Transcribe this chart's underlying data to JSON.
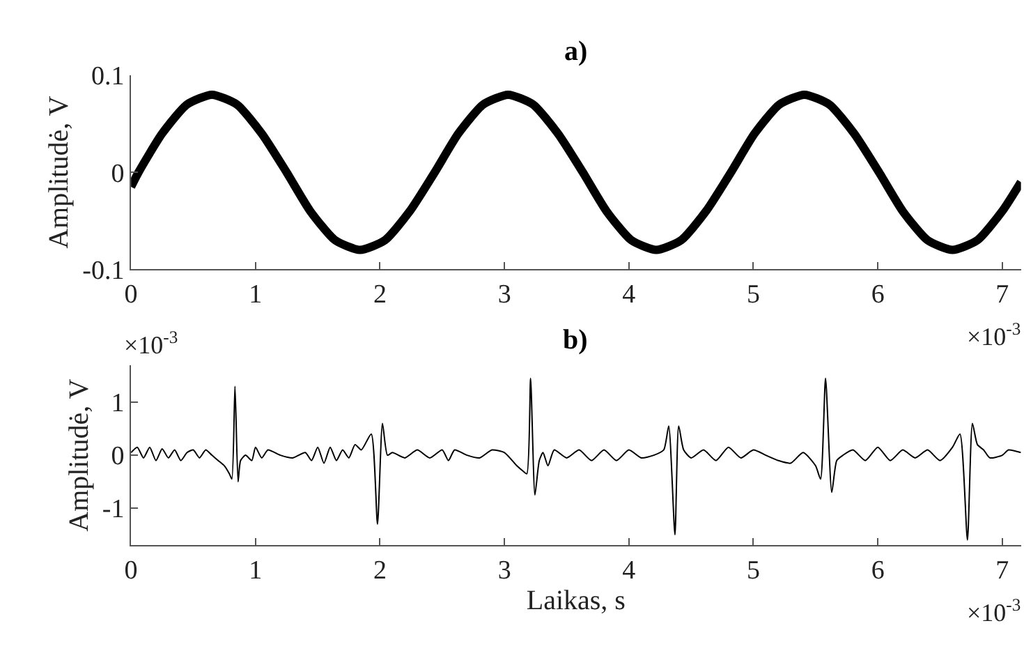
{
  "chart_data": [
    {
      "type": "line",
      "title": "a)",
      "ylabel": "Amplitudė, V",
      "annotations": [
        "×10$^{-3}$"
      ],
      "x": [
        0,
        0.06,
        0.25,
        0.45,
        0.65,
        0.85,
        1.05,
        1.25,
        1.44,
        1.64,
        1.84,
        2.04,
        2.24,
        2.44,
        2.63,
        2.83,
        3.03,
        3.23,
        3.43,
        3.63,
        3.82,
        4.02,
        4.22,
        4.42,
        4.62,
        4.82,
        5.01,
        5.21,
        5.41,
        5.61,
        5.81,
        6.01,
        6.2,
        6.4,
        6.6,
        6.8,
        7,
        7.15
      ],
      "series": [
        {
          "color": "#000000",
          "values": [
            -0.015,
            0,
            0.04,
            0.07,
            0.08,
            0.07,
            0.04,
            0,
            -0.04,
            -0.07,
            -0.08,
            -0.07,
            -0.04,
            0,
            0.04,
            0.07,
            0.08,
            0.07,
            0.04,
            0,
            -0.04,
            -0.07,
            -0.08,
            -0.07,
            -0.04,
            0,
            0.04,
            0.07,
            0.08,
            0.07,
            0.04,
            0,
            -0.04,
            -0.07,
            -0.08,
            -0.07,
            -0.04,
            -0.01
          ]
        }
      ],
      "xlim": [
        0,
        7.15
      ],
      "xticks": [
        0,
        1,
        2,
        3,
        4,
        5,
        6,
        7
      ],
      "ylim": [
        -0.1,
        0.1
      ],
      "yticks": [
        {
          "value": -0.1,
          "label": "-0.1"
        },
        0,
        0.1
      ],
      "marker": "none",
      "line_style": "solid"
    },
    {
      "type": "line",
      "title": "b)",
      "xlabel": "Laikas, s",
      "ylabel": "Amplitudė, V",
      "annotations": [
        "×10$^{-3}$",
        "×10$^{-3}$"
      ],
      "x": [
        0,
        0.05,
        0.1,
        0.15,
        0.2,
        0.25,
        0.3,
        0.35,
        0.4,
        0.45,
        0.5,
        0.55,
        0.6,
        0.65,
        0.7,
        0.75,
        0.79,
        0.81,
        0.835,
        0.86,
        0.88,
        0.92,
        0.97,
        1.0,
        1.05,
        1.1,
        1.2,
        1.3,
        1.4,
        1.45,
        1.5,
        1.55,
        1.6,
        1.65,
        1.7,
        1.75,
        1.8,
        1.85,
        1.93,
        1.98,
        2.02,
        2.06,
        2.1,
        2.2,
        2.3,
        2.4,
        2.5,
        2.55,
        2.6,
        2.7,
        2.8,
        2.9,
        3.0,
        3.1,
        3.15,
        3.18,
        3.21,
        3.245,
        3.28,
        3.31,
        3.35,
        3.4,
        3.5,
        3.6,
        3.7,
        3.8,
        3.9,
        4.0,
        4.1,
        4.2,
        4.28,
        4.32,
        4.37,
        4.4,
        4.44,
        4.5,
        4.6,
        4.7,
        4.8,
        4.9,
        5.0,
        5.1,
        5.2,
        5.3,
        5.4,
        5.5,
        5.54,
        5.58,
        5.63,
        5.67,
        5.72,
        5.8,
        5.9,
        6.0,
        6.1,
        6.2,
        6.3,
        6.4,
        6.5,
        6.6,
        6.66,
        6.72,
        6.76,
        6.8,
        6.85,
        6.9,
        7.0,
        7.05,
        7.15
      ],
      "series": [
        {
          "color": "#000000",
          "values": [
            0.05,
            0.15,
            -0.05,
            0.15,
            -0.1,
            0.12,
            -0.05,
            0.1,
            -0.1,
            0.05,
            0.1,
            -0.05,
            0.1,
            0.0,
            -0.1,
            -0.2,
            -0.35,
            -0.45,
            1.3,
            -0.5,
            -0.1,
            0.0,
            -0.1,
            0.15,
            -0.05,
            0.1,
            0.0,
            -0.05,
            0.05,
            -0.1,
            0.15,
            -0.15,
            0.15,
            -0.1,
            0.1,
            -0.05,
            0.2,
            0.1,
            0.4,
            -1.3,
            0.6,
            0.0,
            0.05,
            -0.05,
            0.1,
            -0.05,
            0.1,
            -0.1,
            0.1,
            0.0,
            -0.05,
            0.1,
            0.05,
            -0.2,
            -0.3,
            -0.35,
            1.45,
            -0.75,
            -0.1,
            0.05,
            -0.2,
            0.1,
            -0.05,
            0.1,
            -0.1,
            0.1,
            -0.1,
            0.1,
            -0.05,
            0.0,
            0.1,
            0.55,
            -1.5,
            0.55,
            0.1,
            -0.05,
            0.1,
            -0.1,
            0.15,
            -0.05,
            0.1,
            0.0,
            -0.1,
            -0.15,
            0.05,
            -0.2,
            -0.45,
            1.45,
            -0.7,
            -0.1,
            0.0,
            0.1,
            -0.1,
            0.15,
            -0.1,
            0.1,
            -0.05,
            0.1,
            -0.1,
            0.15,
            0.4,
            -1.6,
            0.6,
            0.2,
            0.1,
            -0.05,
            0.0,
            0.1,
            0.05
          ]
        }
      ],
      "xlim": [
        0,
        7.15
      ],
      "xticks": [
        0,
        1,
        2,
        3,
        4,
        5,
        6,
        7
      ],
      "ylim": [
        -1.7,
        1.7
      ],
      "yticks": [
        {
          "value": -1,
          "label": "-1"
        },
        0,
        1
      ],
      "marker": "none",
      "line_style": "solid"
    }
  ]
}
